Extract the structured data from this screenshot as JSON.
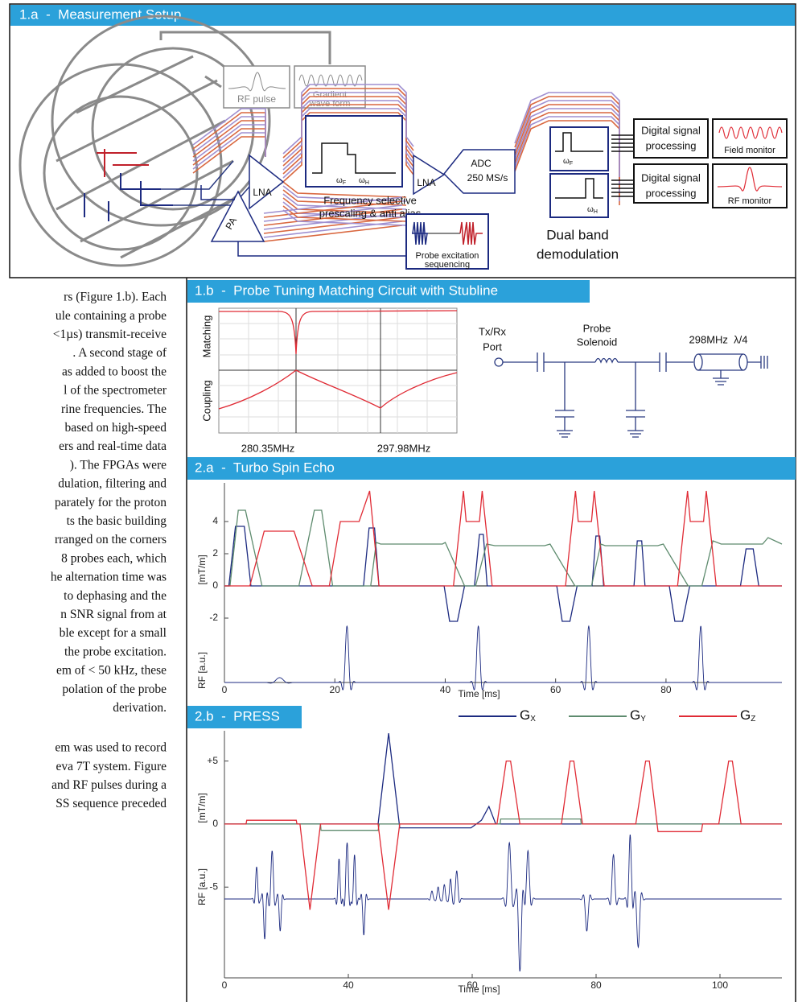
{
  "panel_1a": {
    "title": "1.a  -  Measurement Setup",
    "rf_pulse": "RF pulse",
    "gradient": [
      "Gradient",
      "wave form"
    ],
    "lna": "LNA",
    "filter_omegas": [
      {
        "symbol": "ω",
        "sub": "F"
      },
      {
        "symbol": "ω",
        "sub": "H"
      }
    ],
    "filter_caption": [
      "Frequency selective",
      "prescaling & anti alias"
    ],
    "lna2": "LNA",
    "adc": [
      "ADC",
      "250 MS/s"
    ],
    "demod_omegas": [
      {
        "symbol": "ω",
        "sub": "F"
      },
      {
        "symbol": "ω",
        "sub": "H"
      }
    ],
    "demod_caption": [
      "Dual band",
      "demodulation"
    ],
    "dsp": [
      [
        "Digital signal",
        "processing"
      ],
      [
        "Digital signal",
        "processing"
      ]
    ],
    "monitors": [
      "Field monitor",
      "RF monitor"
    ],
    "pa": "PA",
    "probe_excitation": [
      "Probe excitation",
      "sequencing"
    ]
  },
  "panel_1b": {
    "title": "1.b  -  Probe Tuning Matching Circuit with Stubline",
    "y_labels": [
      "Matching",
      "Coupling"
    ],
    "x_labels": [
      "280.35MHz",
      "297.98MHz"
    ],
    "circuit": {
      "port": [
        "Tx/Rx",
        "Port"
      ],
      "probe": [
        "Probe",
        "Solenoid"
      ],
      "stub": "298MHz  λ/4"
    }
  },
  "body_text": [
    [
      "rs (Figure 1.b). Each",
      "ule containing a probe",
      "<1µs) transmit-receive",
      ". A second stage of",
      "as added to boost the",
      "l of the spectrometer",
      "rine frequencies. The",
      "based on high-speed",
      "ers and real-time data",
      "). The FPGAs were",
      "dulation, filtering and",
      "parately for the proton",
      "ts the basic building",
      "rranged on the corners",
      "8 probes each, which",
      "he alternation time was",
      "to dephasing and the",
      "n SNR signal from at",
      "ble except for a small",
      "the probe excitation.",
      "em of < 50 kHz, these",
      "polation of the probe",
      "derivation."
    ],
    [
      "em was used to record",
      "eva 7T system. Figure",
      "and RF pulses during a",
      "SS sequence preceded"
    ]
  ],
  "figure_2a": {
    "title": "2.a  -  Turbo Spin Echo",
    "y_label": "[mT/m]",
    "rf_label": "RF [a.u.]",
    "x_label": "Time [ms]",
    "xlim": [
      0,
      101
    ],
    "ylim": [
      -6,
      6.4
    ],
    "xticks": [
      0,
      20,
      40,
      60,
      80
    ],
    "yticks": [
      4,
      2,
      0,
      -2
    ],
    "series": [
      {
        "color": "#1c2a80",
        "x": [
          0,
          0.8,
          2,
          3.6,
          4.8,
          25.2,
          26.2,
          27.2,
          28,
          39.8,
          40.8,
          42.2,
          43.5,
          45.3,
          46.2,
          46.9,
          47.6,
          60.2,
          61.2,
          62.6,
          63.9,
          66.6,
          67.3,
          68,
          68.7,
          74.2,
          74.8,
          75.6,
          76.2,
          80.6,
          81.6,
          83,
          84.3,
          93.5,
          94.5,
          95.8,
          96.8,
          101
        ],
        "values": [
          0,
          0,
          3.7,
          3.7,
          0,
          0,
          3.6,
          3.6,
          0,
          0,
          -2.2,
          -2.2,
          0,
          0,
          3.2,
          3.2,
          0,
          0,
          -2.2,
          -2.2,
          0,
          0,
          3.1,
          3.1,
          0,
          0,
          2.8,
          2.8,
          0,
          0,
          -2.2,
          -2.2,
          0,
          0,
          2.3,
          2.3,
          0,
          0
        ]
      },
      {
        "color": "#5e8b6e",
        "x": [
          0,
          1,
          2.5,
          3.8,
          6.8,
          13.5,
          16.3,
          17.6,
          19.6,
          26.5,
          27.5,
          28.3,
          39.5,
          40,
          43.5,
          45.5,
          47.5,
          49,
          58,
          59,
          63.5,
          66.5,
          68.2,
          69,
          78.5,
          79.5,
          84,
          86.5,
          88.5,
          90,
          97.5,
          98.5,
          101
        ],
        "values": [
          0,
          0,
          4.7,
          4.7,
          0,
          0,
          4.7,
          4.7,
          0,
          0,
          2.7,
          2.6,
          2.6,
          2.7,
          0,
          0,
          2.6,
          2.5,
          2.5,
          2.6,
          0,
          0,
          2.6,
          2.5,
          2.5,
          2.6,
          0,
          0,
          2.8,
          2.6,
          2.6,
          3,
          2.6
        ]
      },
      {
        "color": "#e02b35",
        "x": [
          0,
          4.6,
          7.2,
          12.6,
          15.9,
          19,
          21,
          24.4,
          26.3,
          28,
          41.5,
          43.3,
          43.8,
          46.2,
          46.7,
          48.5,
          61.8,
          63.6,
          64.1,
          66.5,
          67,
          68.8,
          82.1,
          83.9,
          84.4,
          86.8,
          87.3,
          89.1,
          101
        ],
        "values": [
          0,
          0,
          3.4,
          3.4,
          0,
          0,
          4,
          4,
          5.9,
          0,
          0,
          5.9,
          4,
          4,
          5.9,
          0,
          0,
          5.9,
          4,
          4,
          5.9,
          0,
          0,
          5.9,
          4,
          4,
          5.9,
          0,
          0
        ]
      }
    ]
  },
  "figure_2b": {
    "title": "2.b  -  PRESS",
    "y_label": "[mT/m]",
    "rf_label": "RF [a.u.]",
    "x_label": "Time [ms]",
    "xlim": [
      20,
      110
    ],
    "ylim": [
      -12.2,
      7.4
    ],
    "xticks": [
      {
        "value": 20,
        "label": "0"
      },
      40,
      60,
      80,
      100
    ],
    "yticks": [
      {
        "value": 5,
        "label": "+5"
      },
      0,
      -5
    ],
    "series": [
      {
        "name": "G",
        "sub": "X",
        "color": "#1c2a80",
        "x": [
          20,
          44.8,
          46.5,
          48.3,
          59.8,
          61.5,
          62.7,
          63.8,
          110
        ],
        "values": [
          0,
          0,
          7.2,
          -0.3,
          -0.3,
          0.3,
          1.4,
          0,
          0
        ]
      },
      {
        "name": "G",
        "sub": "Y",
        "color": "#5e8b6e",
        "x": [
          20,
          35.5,
          35.6,
          44.8,
          45,
          64.5,
          64.6,
          77.5,
          77.6,
          110
        ],
        "values": [
          0,
          0,
          -0.5,
          -0.5,
          0,
          0,
          0.4,
          0.4,
          0,
          0
        ]
      },
      {
        "name": "G",
        "sub": "Z",
        "color": "#e02b35",
        "x": [
          20,
          23.5,
          23.6,
          31.6,
          31.7,
          32.2,
          33.8,
          35.5,
          44.8,
          46.5,
          48.3,
          64,
          65.5,
          66.2,
          67.7,
          74.4,
          75.8,
          76.4,
          77.8,
          86.4,
          88,
          88.6,
          90,
          97,
          97.2,
          99.8,
          101.4,
          102,
          103.4,
          110
        ],
        "values": [
          0,
          0,
          0.3,
          0.3,
          0,
          0,
          -6.8,
          0,
          0,
          -6.8,
          0,
          0,
          5,
          5,
          0,
          0,
          5,
          5,
          0,
          0,
          5,
          5,
          -0.6,
          -0.6,
          0,
          0,
          5,
          5,
          0,
          0
        ]
      }
    ]
  }
}
